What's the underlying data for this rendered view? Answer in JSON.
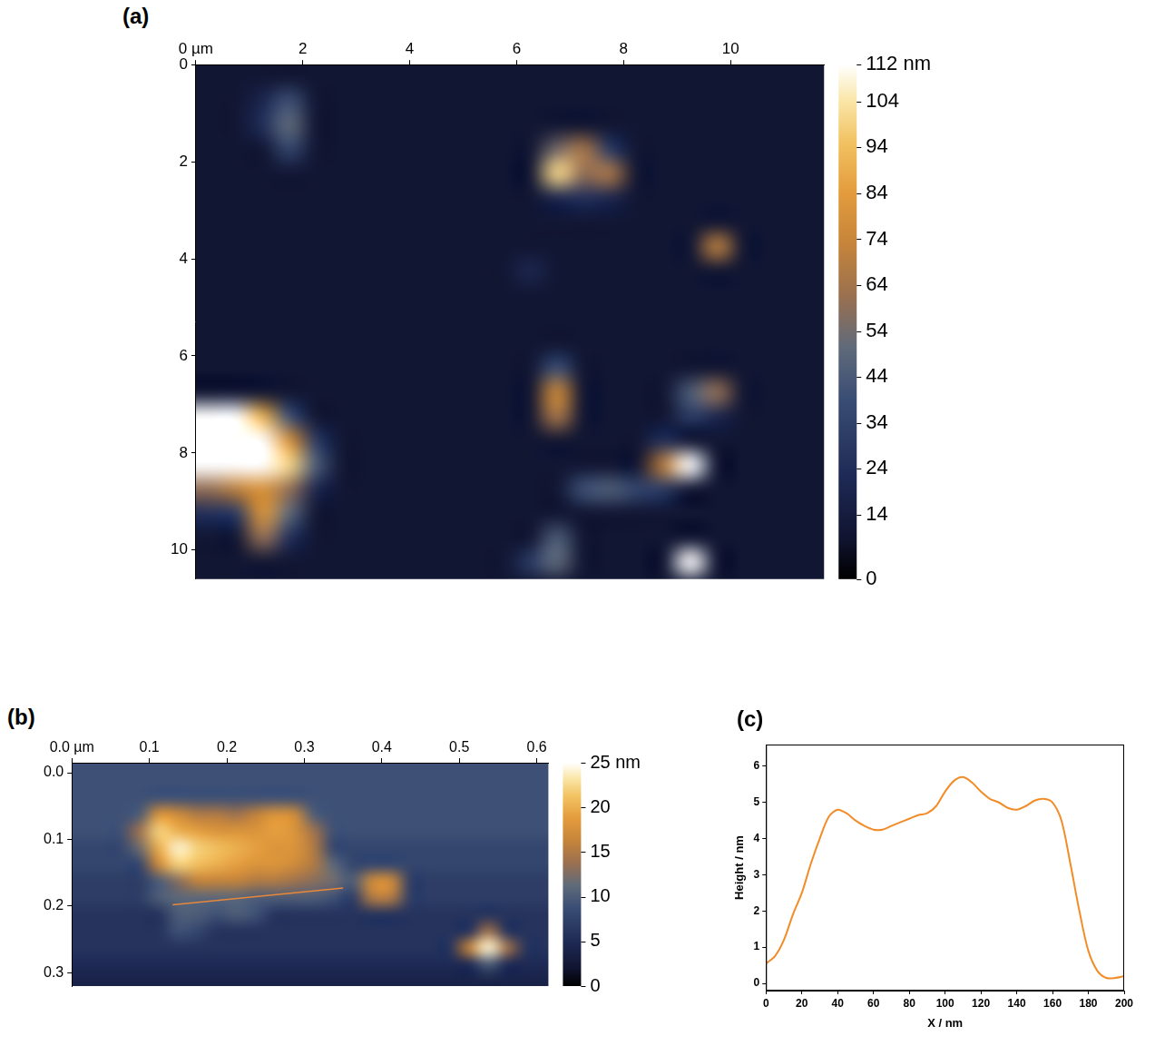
{
  "chart_data": [
    {
      "type": "heatmap",
      "panel": "(a)",
      "xlim": [
        0,
        11.75
      ],
      "ylim": [
        0,
        10.6
      ],
      "xticks": [
        {
          "value": 0,
          "label": "0 µm"
        },
        2,
        4,
        6,
        8,
        10
      ],
      "yticks": [
        0,
        2,
        4,
        6,
        8,
        10
      ],
      "grid": false,
      "x": [
        0.25,
        0.75,
        1.25,
        1.75,
        2.25,
        2.75,
        3.25,
        3.75,
        4.25,
        4.75,
        5.25,
        5.75,
        6.25,
        6.75,
        7.25,
        7.75,
        8.25,
        8.75,
        9.25,
        9.75,
        10.25,
        10.75,
        11.25,
        11.75
      ],
      "y": [
        0.25,
        0.75,
        1.25,
        1.75,
        2.25,
        2.75,
        3.25,
        3.75,
        4.25,
        4.75,
        5.25,
        5.75,
        6.25,
        6.75,
        7.25,
        7.75,
        8.25,
        8.75,
        9.25,
        9.75,
        10.25,
        10.75
      ],
      "z": [
        [
          10,
          10,
          10,
          10,
          10,
          10,
          10,
          10,
          10,
          10,
          10,
          10,
          10,
          10,
          10,
          10,
          10,
          10,
          10,
          10,
          10,
          10,
          10,
          10
        ],
        [
          10,
          10,
          20,
          40,
          10,
          10,
          10,
          10,
          10,
          10,
          10,
          10,
          10,
          10,
          10,
          10,
          10,
          10,
          10,
          10,
          10,
          10,
          10,
          10
        ],
        [
          10,
          10,
          25,
          50,
          10,
          10,
          10,
          10,
          10,
          10,
          10,
          10,
          10,
          10,
          10,
          10,
          10,
          10,
          10,
          10,
          10,
          10,
          10,
          10
        ],
        [
          10,
          10,
          10,
          35,
          10,
          10,
          10,
          10,
          10,
          10,
          10,
          10,
          10,
          55,
          65,
          30,
          10,
          10,
          10,
          10,
          10,
          10,
          10,
          10
        ],
        [
          10,
          10,
          10,
          10,
          10,
          10,
          10,
          10,
          10,
          10,
          10,
          10,
          10,
          100,
          60,
          65,
          10,
          10,
          10,
          10,
          10,
          10,
          10,
          10
        ],
        [
          10,
          10,
          10,
          10,
          10,
          10,
          10,
          10,
          10,
          10,
          10,
          10,
          10,
          20,
          25,
          20,
          10,
          10,
          10,
          10,
          10,
          10,
          10,
          10
        ],
        [
          10,
          10,
          10,
          10,
          10,
          10,
          10,
          10,
          10,
          10,
          10,
          10,
          10,
          10,
          10,
          10,
          10,
          10,
          10,
          10,
          10,
          10,
          10,
          10
        ],
        [
          10,
          10,
          10,
          10,
          10,
          10,
          10,
          10,
          10,
          10,
          10,
          10,
          10,
          10,
          10,
          10,
          10,
          10,
          10,
          70,
          10,
          10,
          10,
          10
        ],
        [
          10,
          10,
          10,
          10,
          10,
          10,
          10,
          10,
          10,
          10,
          10,
          10,
          20,
          10,
          10,
          10,
          10,
          10,
          10,
          10,
          10,
          10,
          10,
          10
        ],
        [
          10,
          10,
          10,
          10,
          10,
          10,
          10,
          10,
          10,
          10,
          10,
          10,
          10,
          10,
          10,
          10,
          10,
          10,
          10,
          10,
          10,
          10,
          10,
          10
        ],
        [
          10,
          10,
          10,
          10,
          10,
          10,
          10,
          10,
          10,
          10,
          10,
          10,
          10,
          10,
          10,
          10,
          10,
          10,
          10,
          10,
          10,
          10,
          10,
          10
        ],
        [
          10,
          10,
          10,
          10,
          10,
          10,
          10,
          10,
          10,
          10,
          10,
          10,
          10,
          10,
          10,
          10,
          10,
          10,
          10,
          10,
          10,
          10,
          10,
          10
        ],
        [
          10,
          10,
          10,
          10,
          10,
          10,
          10,
          10,
          10,
          10,
          10,
          10,
          10,
          40,
          10,
          10,
          10,
          10,
          10,
          10,
          10,
          10,
          10,
          10
        ],
        [
          10,
          10,
          10,
          10,
          10,
          10,
          10,
          10,
          10,
          10,
          10,
          10,
          10,
          75,
          10,
          10,
          10,
          10,
          45,
          60,
          10,
          10,
          10,
          10
        ],
        [
          112,
          112,
          90,
          40,
          10,
          10,
          10,
          10,
          10,
          10,
          10,
          10,
          10,
          65,
          10,
          10,
          10,
          10,
          30,
          20,
          10,
          10,
          10,
          10
        ],
        [
          112,
          112,
          112,
          80,
          30,
          10,
          10,
          10,
          10,
          10,
          10,
          10,
          10,
          10,
          10,
          10,
          10,
          25,
          10,
          10,
          10,
          10,
          10,
          10
        ],
        [
          112,
          112,
          112,
          100,
          45,
          10,
          10,
          10,
          10,
          10,
          10,
          10,
          10,
          10,
          10,
          10,
          10,
          70,
          112,
          10,
          10,
          10,
          10,
          10
        ],
        [
          60,
          70,
          80,
          60,
          20,
          10,
          10,
          10,
          10,
          10,
          10,
          10,
          10,
          10,
          40,
          45,
          35,
          30,
          10,
          10,
          10,
          10,
          10,
          10
        ],
        [
          25,
          30,
          80,
          50,
          10,
          10,
          10,
          10,
          10,
          10,
          10,
          10,
          10,
          10,
          10,
          10,
          10,
          10,
          10,
          10,
          10,
          10,
          10,
          10
        ],
        [
          10,
          10,
          60,
          25,
          10,
          10,
          10,
          10,
          10,
          10,
          10,
          10,
          10,
          45,
          10,
          10,
          10,
          10,
          10,
          10,
          10,
          10,
          10,
          10
        ],
        [
          10,
          10,
          10,
          10,
          10,
          10,
          10,
          10,
          10,
          10,
          10,
          10,
          30,
          50,
          10,
          10,
          10,
          10,
          112,
          10,
          10,
          10,
          10,
          10
        ],
        [
          10,
          10,
          10,
          10,
          10,
          10,
          10,
          10,
          10,
          10,
          10,
          10,
          10,
          10,
          10,
          10,
          10,
          10,
          10,
          10,
          10,
          10,
          10,
          10
        ]
      ],
      "colorbar": {
        "range": [
          0,
          112
        ],
        "ticks": [
          0,
          14,
          24,
          34,
          44,
          54,
          64,
          74,
          84,
          94,
          104,
          {
            "value": 112,
            "label": "112 nm"
          }
        ]
      }
    },
    {
      "type": "heatmap",
      "panel": "(b)",
      "xlim": [
        0,
        0.615
      ],
      "ylim": [
        -0.015,
        0.32
      ],
      "xticks": [
        {
          "value": 0,
          "label": "0.0 µm"
        },
        0.1,
        0.2,
        0.3,
        0.4,
        0.5,
        0.6
      ],
      "yticks": [
        {
          "value": 0,
          "label": "0.0"
        },
        0.1,
        0.2,
        0.3
      ],
      "grid": false,
      "x": [
        0.0125,
        0.0375,
        0.0625,
        0.0875,
        0.1125,
        0.1375,
        0.1625,
        0.1875,
        0.2125,
        0.2375,
        0.2625,
        0.2875,
        0.3125,
        0.3375,
        0.3625,
        0.3875,
        0.4125,
        0.4375,
        0.4625,
        0.4875,
        0.5125,
        0.5375,
        0.5625,
        0.5875,
        0.6125
      ],
      "y": [
        -0.0125,
        0.0125,
        0.0375,
        0.0625,
        0.0875,
        0.1125,
        0.1375,
        0.1625,
        0.1875,
        0.2125,
        0.2375,
        0.2625,
        0.2875,
        0.3125
      ],
      "z": [
        [
          9,
          9,
          9,
          9,
          9,
          9,
          9,
          9,
          9,
          9,
          9,
          9,
          9,
          9,
          9,
          9,
          9,
          9,
          9,
          9,
          9,
          9,
          9,
          9,
          9
        ],
        [
          9,
          9,
          9,
          9,
          9,
          9,
          9,
          9,
          9,
          9,
          9,
          9,
          9,
          9,
          9,
          9,
          9,
          9,
          9,
          9,
          9,
          9,
          9,
          9,
          9
        ],
        [
          9,
          9,
          9,
          9,
          9,
          9,
          9,
          9,
          9,
          9,
          9,
          9,
          9,
          9,
          9,
          9,
          9,
          9,
          9,
          9,
          9,
          9,
          9,
          9,
          9
        ],
        [
          9,
          9,
          9,
          10,
          18,
          17,
          15,
          15,
          14,
          16,
          18,
          17,
          10,
          9,
          9,
          9,
          9,
          9,
          9,
          9,
          9,
          9,
          9,
          9,
          9
        ],
        [
          9,
          9,
          9,
          14,
          22,
          20,
          19,
          18,
          18,
          18,
          19,
          18,
          14,
          9,
          9,
          9,
          9,
          9,
          9,
          9,
          9,
          9,
          9,
          9,
          9
        ],
        [
          8,
          8,
          8,
          12,
          20,
          24,
          22,
          21,
          20,
          19,
          18,
          18,
          15,
          8,
          8,
          8,
          8,
          8,
          8,
          8,
          8,
          8,
          8,
          8,
          8
        ],
        [
          8,
          8,
          8,
          8,
          17,
          22,
          21,
          20,
          19,
          18,
          18,
          17,
          15,
          11,
          8,
          8,
          8,
          8,
          8,
          8,
          8,
          8,
          8,
          8,
          8
        ],
        [
          7,
          7,
          7,
          7,
          10,
          13,
          16,
          16,
          16,
          15,
          15,
          14,
          13,
          12,
          10,
          17,
          17,
          7,
          7,
          7,
          7,
          7,
          7,
          7,
          7
        ],
        [
          7,
          7,
          7,
          7,
          10,
          11,
          11,
          11,
          11,
          10,
          10,
          10,
          10,
          9,
          7,
          15,
          15,
          7,
          7,
          7,
          7,
          7,
          7,
          7,
          7
        ],
        [
          6,
          6,
          6,
          6,
          6,
          10,
          10,
          9,
          10,
          9,
          6,
          6,
          6,
          6,
          6,
          6,
          6,
          6,
          6,
          6,
          6,
          6,
          6,
          6,
          6
        ],
        [
          6,
          6,
          6,
          6,
          6,
          9,
          8,
          6,
          6,
          6,
          6,
          6,
          6,
          6,
          6,
          6,
          6,
          6,
          6,
          6,
          6,
          14,
          6,
          6,
          6
        ],
        [
          6,
          6,
          6,
          6,
          6,
          6,
          6,
          6,
          6,
          6,
          6,
          6,
          6,
          6,
          6,
          6,
          6,
          6,
          6,
          6,
          16,
          24,
          14,
          6,
          6
        ],
        [
          5,
          5,
          5,
          5,
          5,
          5,
          5,
          5,
          5,
          5,
          5,
          5,
          5,
          5,
          5,
          5,
          5,
          5,
          5,
          5,
          5,
          10,
          5,
          5,
          5
        ],
        [
          4,
          4,
          4,
          4,
          4,
          4,
          4,
          4,
          4,
          4,
          4,
          4,
          4,
          4,
          4,
          4,
          4,
          4,
          4,
          4,
          4,
          4,
          4,
          4,
          4
        ]
      ],
      "colorbar": {
        "range": [
          0,
          25
        ],
        "ticks": [
          0,
          5,
          10,
          15,
          20,
          {
            "value": 25,
            "label": "25 nm"
          }
        ]
      },
      "profile_line": {
        "x": [
          0.13,
          0.35
        ],
        "y": [
          0.198,
          0.173
        ],
        "color": "#e8883a"
      }
    },
    {
      "type": "line",
      "panel": "(c)",
      "x_label": "X / nm",
      "y_label": "Height / nm",
      "xlim": [
        0,
        200
      ],
      "ylim": [
        -0.2,
        6.6
      ],
      "xticks": [
        0,
        20,
        40,
        60,
        80,
        100,
        120,
        140,
        160,
        180,
        200
      ],
      "yticks": [
        0,
        1,
        2,
        3,
        4,
        5,
        6
      ],
      "grid": false,
      "color": "#f28c28",
      "x": [
        0,
        5,
        10,
        15,
        20,
        25,
        30,
        35,
        40,
        45,
        50,
        55,
        60,
        65,
        70,
        75,
        80,
        85,
        90,
        95,
        100,
        105,
        110,
        115,
        120,
        125,
        130,
        135,
        140,
        145,
        150,
        155,
        160,
        165,
        170,
        175,
        180,
        185,
        190,
        195,
        200
      ],
      "values": [
        0.55,
        0.75,
        1.2,
        1.9,
        2.5,
        3.3,
        4.0,
        4.6,
        4.8,
        4.7,
        4.5,
        4.35,
        4.25,
        4.25,
        4.35,
        4.45,
        4.55,
        4.65,
        4.7,
        4.9,
        5.3,
        5.6,
        5.7,
        5.55,
        5.3,
        5.1,
        5.0,
        4.85,
        4.8,
        4.9,
        5.05,
        5.1,
        5.0,
        4.5,
        3.3,
        2.0,
        0.9,
        0.35,
        0.15,
        0.15,
        0.2
      ]
    }
  ]
}
